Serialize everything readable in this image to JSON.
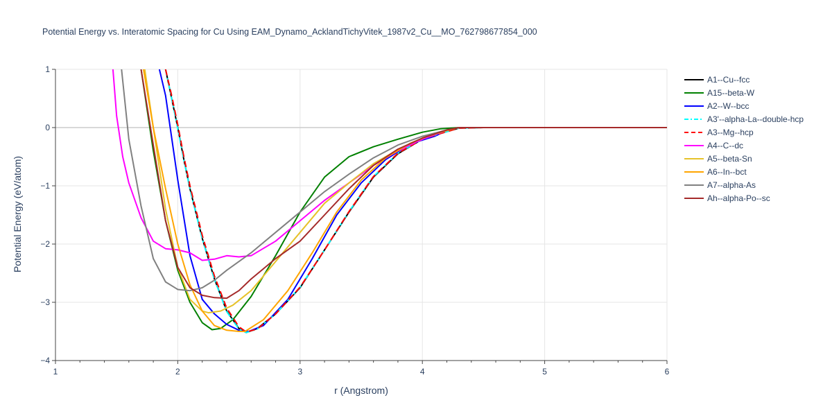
{
  "chart_data": {
    "type": "line",
    "title": "Potential Energy vs. Interatomic Spacing for Cu Using EAM_Dynamo_AcklandTichyVitek_1987v2_Cu__MO_762798677854_000",
    "xlabel": "r (Angstrom)",
    "ylabel": "Potential Energy (eV/atom)",
    "xlim": [
      1,
      6
    ],
    "ylim": [
      -4,
      1
    ],
    "xticks": [
      1,
      2,
      3,
      4,
      5,
      6
    ],
    "yticks": [
      -4,
      -3,
      -2,
      -1,
      0,
      1
    ],
    "grid": true,
    "legend_position": "top-right",
    "series": [
      {
        "name": "A1--Cu--fcc",
        "color": "#000000",
        "dash": "solid",
        "x": [
          1.9,
          1.95,
          2.0,
          2.05,
          2.1,
          2.2,
          2.3,
          2.4,
          2.5,
          2.56,
          2.65,
          2.8,
          3.0,
          3.2,
          3.4,
          3.6,
          3.8,
          4.0,
          4.15,
          4.3,
          4.5,
          6.0
        ],
        "y": [
          1.0,
          0.5,
          0.0,
          -0.55,
          -1.05,
          -1.9,
          -2.6,
          -3.15,
          -3.45,
          -3.52,
          -3.45,
          -3.2,
          -2.75,
          -2.1,
          -1.45,
          -0.85,
          -0.45,
          -0.2,
          -0.1,
          -0.01,
          0.0,
          0.0
        ]
      },
      {
        "name": "A15--beta-W",
        "color": "#008000",
        "dash": "solid",
        "x": [
          1.7,
          1.8,
          1.9,
          2.0,
          2.1,
          2.2,
          2.28,
          2.35,
          2.45,
          2.6,
          2.8,
          3.0,
          3.2,
          3.4,
          3.6,
          3.8,
          4.0,
          4.15,
          4.3,
          6.0
        ],
        "y": [
          1.0,
          -0.4,
          -1.6,
          -2.45,
          -3.0,
          -3.35,
          -3.47,
          -3.45,
          -3.3,
          -2.9,
          -2.2,
          -1.45,
          -0.85,
          -0.5,
          -0.33,
          -0.2,
          -0.08,
          -0.02,
          0.0,
          0.0
        ]
      },
      {
        "name": "A2--W--bcc",
        "color": "#0000ff",
        "dash": "solid",
        "x": [
          1.85,
          1.9,
          2.0,
          2.1,
          2.2,
          2.3,
          2.4,
          2.5,
          2.58,
          2.7,
          2.9,
          3.1,
          3.3,
          3.5,
          3.7,
          3.9,
          4.1,
          4.2,
          4.3,
          6.0
        ],
        "y": [
          1.0,
          0.55,
          -0.9,
          -2.2,
          -2.95,
          -3.2,
          -3.38,
          -3.48,
          -3.5,
          -3.4,
          -2.95,
          -2.25,
          -1.5,
          -0.95,
          -0.55,
          -0.28,
          -0.15,
          -0.05,
          0.0,
          0.0
        ]
      },
      {
        "name": "A3'--alpha-La--double-hcp",
        "color": "#00ffff",
        "dash": "dashdot",
        "x": [
          1.9,
          1.95,
          2.0,
          2.05,
          2.1,
          2.2,
          2.3,
          2.4,
          2.5,
          2.56,
          2.65,
          2.8,
          3.0,
          3.2,
          3.4,
          3.6,
          3.8,
          4.0,
          4.15,
          4.3,
          4.5,
          6.0
        ],
        "y": [
          1.0,
          0.5,
          -0.02,
          -0.56,
          -1.06,
          -1.91,
          -2.61,
          -3.16,
          -3.46,
          -3.52,
          -3.46,
          -3.2,
          -2.74,
          -2.1,
          -1.44,
          -0.84,
          -0.44,
          -0.2,
          -0.1,
          -0.01,
          0.0,
          0.0
        ]
      },
      {
        "name": "A3--Mg--hcp",
        "color": "#ff0000",
        "dash": "dash",
        "x": [
          1.9,
          1.95,
          2.0,
          2.05,
          2.1,
          2.2,
          2.3,
          2.4,
          2.5,
          2.56,
          2.65,
          2.8,
          3.0,
          3.2,
          3.4,
          3.6,
          3.8,
          4.0,
          4.15,
          4.3,
          4.5,
          6.0
        ],
        "y": [
          1.0,
          0.55,
          0.05,
          -0.5,
          -1.0,
          -1.85,
          -2.55,
          -3.1,
          -3.42,
          -3.51,
          -3.46,
          -3.2,
          -2.74,
          -2.1,
          -1.44,
          -0.84,
          -0.44,
          -0.2,
          -0.1,
          -0.01,
          0.0,
          0.0
        ]
      },
      {
        "name": "A4--C--dc",
        "color": "#ff00ff",
        "dash": "solid",
        "x": [
          1.47,
          1.5,
          1.55,
          1.6,
          1.7,
          1.8,
          1.9,
          2.0,
          2.1,
          2.2,
          2.3,
          2.4,
          2.5,
          2.6,
          2.8,
          3.0,
          3.2,
          3.4,
          3.6,
          3.8,
          4.0,
          4.2,
          4.3,
          6.0
        ],
        "y": [
          1.0,
          0.2,
          -0.5,
          -0.95,
          -1.55,
          -1.95,
          -2.08,
          -2.1,
          -2.15,
          -2.28,
          -2.26,
          -2.2,
          -2.22,
          -2.2,
          -1.95,
          -1.6,
          -1.25,
          -0.95,
          -0.65,
          -0.4,
          -0.2,
          -0.05,
          0.0,
          0.0
        ]
      },
      {
        "name": "A5--beta-Sn",
        "color": "#e6c229",
        "dash": "solid",
        "x": [
          1.73,
          1.8,
          1.9,
          2.0,
          2.1,
          2.2,
          2.25,
          2.35,
          2.45,
          2.6,
          2.8,
          3.0,
          3.2,
          3.4,
          3.6,
          3.8,
          4.0,
          4.2,
          4.3,
          6.0
        ],
        "y": [
          1.0,
          0.0,
          -1.4,
          -2.4,
          -2.95,
          -3.15,
          -3.18,
          -3.15,
          -3.05,
          -2.8,
          -2.3,
          -1.8,
          -1.3,
          -0.95,
          -0.62,
          -0.38,
          -0.18,
          -0.05,
          0.0,
          0.0
        ]
      },
      {
        "name": "A6--In--bct",
        "color": "#ffa500",
        "dash": "solid",
        "x": [
          1.72,
          1.8,
          1.9,
          2.0,
          2.1,
          2.2,
          2.3,
          2.4,
          2.5,
          2.55,
          2.7,
          2.9,
          3.1,
          3.3,
          3.5,
          3.7,
          3.9,
          4.1,
          4.3,
          6.0
        ],
        "y": [
          1.0,
          0.0,
          -1.05,
          -2.0,
          -2.7,
          -3.15,
          -3.4,
          -3.48,
          -3.5,
          -3.5,
          -3.3,
          -2.8,
          -2.15,
          -1.45,
          -0.9,
          -0.52,
          -0.27,
          -0.1,
          0.0,
          0.0
        ]
      },
      {
        "name": "A7--alpha-As",
        "color": "#808080",
        "dash": "solid",
        "x": [
          1.54,
          1.6,
          1.7,
          1.8,
          1.9,
          2.0,
          2.1,
          2.2,
          2.3,
          2.4,
          2.5,
          2.6,
          2.8,
          3.0,
          3.2,
          3.4,
          3.6,
          3.8,
          4.0,
          4.2,
          4.3,
          6.0
        ],
        "y": [
          1.0,
          -0.2,
          -1.35,
          -2.25,
          -2.65,
          -2.78,
          -2.8,
          -2.75,
          -2.62,
          -2.45,
          -2.3,
          -2.15,
          -1.8,
          -1.45,
          -1.1,
          -0.8,
          -0.52,
          -0.3,
          -0.15,
          -0.04,
          0.0,
          0.0
        ]
      },
      {
        "name": "Ah--alpha-Po--sc",
        "color": "#a52a2a",
        "dash": "solid",
        "x": [
          1.7,
          1.8,
          1.9,
          2.0,
          2.1,
          2.2,
          2.3,
          2.4,
          2.5,
          2.6,
          2.8,
          3.0,
          3.2,
          3.4,
          3.6,
          3.8,
          4.0,
          4.2,
          4.3,
          6.0
        ],
        "y": [
          1.0,
          -0.3,
          -1.6,
          -2.4,
          -2.75,
          -2.88,
          -2.92,
          -2.93,
          -2.8,
          -2.6,
          -2.25,
          -1.95,
          -1.5,
          -1.05,
          -0.65,
          -0.37,
          -0.18,
          -0.04,
          0.0,
          0.0
        ]
      }
    ]
  }
}
